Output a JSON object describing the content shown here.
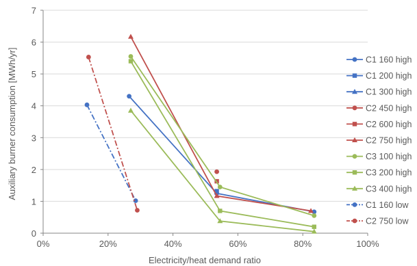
{
  "chart_data": {
    "type": "line",
    "title": "",
    "xlabel": "Electricity/heat demand ratio",
    "ylabel": "Auxiliary burner consumption [MWh/yr]",
    "xlim": [
      0,
      1
    ],
    "ylim": [
      0,
      7
    ],
    "x_tick_labels": [
      "0%",
      "20%",
      "40%",
      "60%",
      "80%",
      "100%"
    ],
    "y_tick_labels": [
      "0",
      "1",
      "2",
      "3",
      "4",
      "5",
      "6",
      "7"
    ],
    "grid": "horizontal",
    "legend_position": "right",
    "series": [
      {
        "name": "C1 160 high",
        "color": "#4472c4",
        "marker": "circle",
        "dash": "solid",
        "x": [
          0.265,
          0.535,
          0.835
        ],
        "y": [
          4.3,
          1.25,
          0.67
        ]
      },
      {
        "name": "C1 200 high",
        "color": "#4472c4",
        "marker": "square",
        "dash": "solid",
        "x": [
          0.535
        ],
        "y": [
          1.32
        ]
      },
      {
        "name": "C1 300 high",
        "color": "#4472c4",
        "marker": "triangle",
        "dash": "solid",
        "x": [
          0.535
        ],
        "y": [
          1.28
        ]
      },
      {
        "name": "C2 450 high",
        "color": "#c0504d",
        "marker": "circle",
        "dash": "solid",
        "x": [
          0.535
        ],
        "y": [
          1.93
        ]
      },
      {
        "name": "C2 600 high",
        "color": "#c0504d",
        "marker": "square",
        "dash": "solid",
        "x": [
          0.535
        ],
        "y": [
          1.63
        ]
      },
      {
        "name": "C2 750 high",
        "color": "#c0504d",
        "marker": "triangle",
        "dash": "solid",
        "x": [
          0.27,
          0.535,
          0.825
        ],
        "y": [
          6.17,
          1.17,
          0.7
        ]
      },
      {
        "name": "C3 100 high",
        "color": "#9bbb59",
        "marker": "circle",
        "dash": "solid",
        "x": [
          0.27,
          0.545,
          0.835
        ],
        "y": [
          5.55,
          1.45,
          0.55
        ]
      },
      {
        "name": "C3 200 high",
        "color": "#9bbb59",
        "marker": "square",
        "dash": "solid",
        "x": [
          0.27,
          0.545,
          0.835
        ],
        "y": [
          5.4,
          0.7,
          0.2
        ]
      },
      {
        "name": "C3 400 high",
        "color": "#9bbb59",
        "marker": "triangle",
        "dash": "solid",
        "x": [
          0.27,
          0.545,
          0.835
        ],
        "y": [
          3.85,
          0.38,
          0.05
        ]
      },
      {
        "name": "C1 160 low",
        "color": "#4472c4",
        "marker": "circle",
        "dash": "dashdot",
        "x": [
          0.135,
          0.285
        ],
        "y": [
          4.03,
          1.02
        ]
      },
      {
        "name": "C2 750 low",
        "color": "#c0504d",
        "marker": "circle",
        "dash": "dashdot",
        "x": [
          0.14,
          0.29
        ],
        "y": [
          5.53,
          0.72
        ]
      }
    ]
  }
}
